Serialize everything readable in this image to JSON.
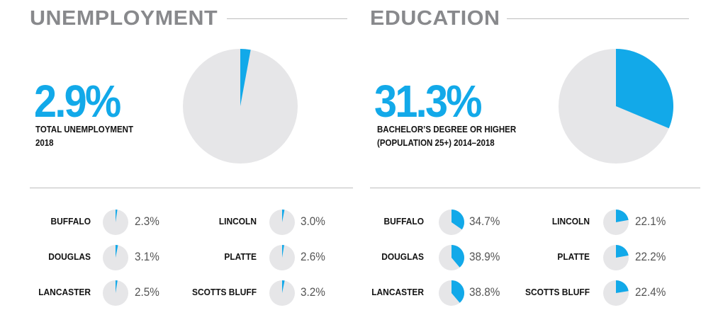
{
  "colors": {
    "accent": "#12a9e9",
    "pie_bg": "#e6e6e8",
    "title": "#88898c"
  },
  "chart_data": [
    {
      "type": "pie",
      "title": "UNEMPLOYMENT",
      "headline": {
        "value": "2.9%",
        "label_line1": "TOTAL UNEMPLOYMENT",
        "label_line2": "2018",
        "percent": 2.9
      },
      "items": [
        {
          "name": "BUFFALO",
          "label": "2.3%",
          "percent": 2.3
        },
        {
          "name": "DOUGLAS",
          "label": "3.1%",
          "percent": 3.1
        },
        {
          "name": "LANCASTER",
          "label": "2.5%",
          "percent": 2.5
        },
        {
          "name": "LINCOLN",
          "label": "3.0%",
          "percent": 3.0
        },
        {
          "name": "PLATTE",
          "label": "2.6%",
          "percent": 2.6
        },
        {
          "name": "SCOTTS BLUFF",
          "label": "3.2%",
          "percent": 3.2
        }
      ]
    },
    {
      "type": "pie",
      "title": "EDUCATION",
      "headline": {
        "value": "31.3%",
        "label_line1": "BACHELOR’S DEGREE OR HIGHER",
        "label_line2": "(POPULATION 25+) 2014–2018",
        "percent": 31.3
      },
      "items": [
        {
          "name": "BUFFALO",
          "label": "34.7%",
          "percent": 34.7
        },
        {
          "name": "DOUGLAS",
          "label": "38.9%",
          "percent": 38.9
        },
        {
          "name": "LANCASTER",
          "label": "38.8%",
          "percent": 38.8
        },
        {
          "name": "LINCOLN",
          "label": "22.1%",
          "percent": 22.1
        },
        {
          "name": "PLATTE",
          "label": "22.2%",
          "percent": 22.2
        },
        {
          "name": "SCOTTS BLUFF",
          "label": "22.4%",
          "percent": 22.4
        }
      ]
    }
  ]
}
